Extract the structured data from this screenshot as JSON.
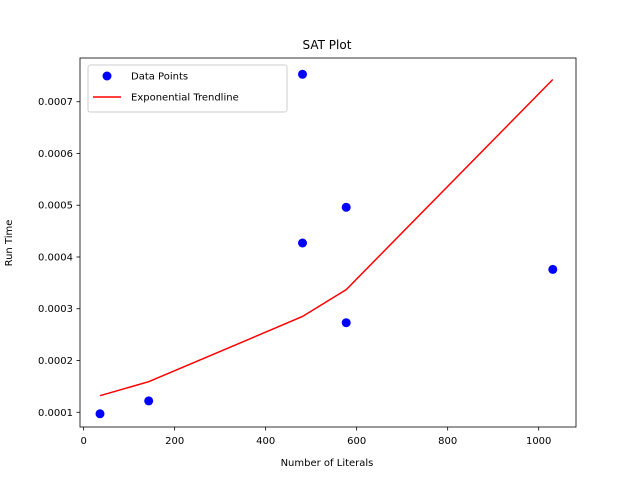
{
  "chart_data": {
    "type": "scatter",
    "title": "SAT Plot",
    "xlabel": "Number of Literals",
    "ylabel": "Run Time",
    "xlim": [
      -8,
      1082
    ],
    "ylim": [
      7.15e-05,
      0.0007845
    ],
    "xticks": [
      0,
      200,
      400,
      600,
      800,
      1000
    ],
    "xtick_labels": [
      "0",
      "200",
      "400",
      "600",
      "800",
      "1000"
    ],
    "yticks": [
      0.0001,
      0.0002,
      0.0003,
      0.0004,
      0.0005,
      0.0006,
      0.0007
    ],
    "ytick_labels": [
      "0.0001",
      "0.0002",
      "0.0003",
      "0.0004",
      "0.0005",
      "0.0006",
      "0.0007"
    ],
    "grid": false,
    "legend_position": "upper-left",
    "series": [
      {
        "name": "Data Points",
        "kind": "scatter",
        "color": "#0000ff",
        "points": [
          {
            "x": 36,
            "y": 9.7e-05
          },
          {
            "x": 143,
            "y": 0.000122
          },
          {
            "x": 481,
            "y": 0.000427
          },
          {
            "x": 481,
            "y": 0.000753
          },
          {
            "x": 577,
            "y": 0.000273
          },
          {
            "x": 577,
            "y": 0.000496
          },
          {
            "x": 1031,
            "y": 0.000376
          }
        ]
      },
      {
        "name": "Exponential Trendline",
        "kind": "line",
        "color": "#ff0000",
        "points": [
          {
            "x": 36,
            "y": 0.000132
          },
          {
            "x": 143,
            "y": 0.000159
          },
          {
            "x": 481,
            "y": 0.000285
          },
          {
            "x": 577,
            "y": 0.000337
          },
          {
            "x": 1031,
            "y": 0.000743
          }
        ]
      }
    ]
  }
}
